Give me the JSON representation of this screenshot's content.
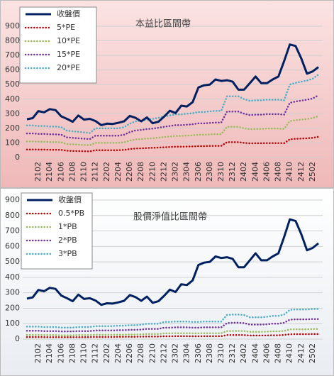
{
  "chart_data": [
    {
      "type": "line",
      "title": "本益比區間帶",
      "categories": [
        null,
        null,
        "2102",
        null,
        "2104",
        null,
        "2106",
        null,
        "2108",
        null,
        "2110",
        null,
        "2112",
        null,
        "2202",
        null,
        "2204",
        null,
        "2206",
        null,
        "2208",
        null,
        "2210",
        null,
        "2212",
        null,
        "2302",
        null,
        "2304",
        null,
        "2306",
        null,
        "2308",
        null,
        "2310",
        null,
        "2312",
        null,
        "2402",
        null,
        "2404",
        null,
        "2406",
        null,
        "2408",
        null,
        "2410",
        null,
        "2412",
        null,
        "2502",
        null
      ],
      "series": [
        {
          "name": "收盤價",
          "color": "#002060",
          "values": [
            262,
            270,
            318,
            310,
            332,
            325,
            282,
            265,
            245,
            288,
            260,
            265,
            250,
            222,
            232,
            230,
            238,
            248,
            285,
            272,
            248,
            275,
            235,
            245,
            280,
            320,
            305,
            355,
            350,
            380,
            480,
            495,
            500,
            535,
            525,
            530,
            520,
            465,
            465,
            510,
            555,
            510,
            510,
            535,
            555,
            660,
            775,
            765,
            680,
            575,
            590,
            620
          ]
        },
        {
          "name": "5*PE",
          "color": "#c00000",
          "values": [
            55,
            55,
            54,
            54,
            53,
            53,
            52,
            46,
            45,
            44,
            43,
            42,
            50,
            50,
            50,
            50,
            50,
            52,
            58,
            62,
            63,
            65,
            66,
            68,
            70,
            72,
            74,
            74,
            75,
            76,
            78,
            78,
            79,
            80,
            80,
            105,
            105,
            105,
            100,
            97,
            98,
            98,
            99,
            99,
            99,
            98,
            125,
            128,
            130,
            132,
            135,
            142
          ]
        },
        {
          "name": "10*PE",
          "color": "#9bbb59",
          "values": [
            110,
            110,
            108,
            108,
            106,
            106,
            104,
            92,
            90,
            88,
            86,
            84,
            100,
            100,
            100,
            100,
            100,
            104,
            116,
            124,
            126,
            130,
            132,
            136,
            140,
            144,
            148,
            148,
            150,
            152,
            156,
            156,
            158,
            160,
            160,
            210,
            210,
            210,
            200,
            194,
            196,
            196,
            198,
            198,
            198,
            196,
            250,
            256,
            260,
            264,
            270,
            284
          ]
        },
        {
          "name": "15*PE",
          "color": "#7030a0",
          "values": [
            165,
            165,
            162,
            162,
            159,
            159,
            156,
            138,
            135,
            132,
            129,
            126,
            150,
            150,
            150,
            150,
            150,
            156,
            174,
            186,
            189,
            195,
            198,
            204,
            210,
            216,
            222,
            222,
            225,
            228,
            234,
            234,
            237,
            240,
            240,
            315,
            315,
            315,
            300,
            291,
            294,
            294,
            297,
            297,
            297,
            294,
            375,
            384,
            390,
            396,
            405,
            426
          ]
        },
        {
          "name": "20*PE",
          "color": "#4bacc6",
          "values": [
            220,
            220,
            216,
            216,
            212,
            212,
            208,
            184,
            180,
            176,
            172,
            168,
            200,
            200,
            200,
            200,
            200,
            208,
            232,
            248,
            252,
            260,
            264,
            272,
            280,
            288,
            296,
            296,
            300,
            304,
            312,
            312,
            316,
            320,
            320,
            420,
            420,
            420,
            400,
            388,
            392,
            392,
            396,
            396,
            396,
            392,
            500,
            512,
            520,
            528,
            540,
            568
          ]
        }
      ],
      "ylim": [
        0,
        900
      ],
      "yticks": [
        0,
        100,
        200,
        300,
        400,
        500,
        600,
        700,
        800,
        900
      ],
      "grid": true,
      "legend": "top-left"
    },
    {
      "type": "line",
      "title": "股價淨值比區間帶",
      "categories": [
        null,
        null,
        "2102",
        null,
        "2104",
        null,
        "2106",
        null,
        "2108",
        null,
        "2110",
        null,
        "2112",
        null,
        "2202",
        null,
        "2204",
        null,
        "2206",
        null,
        "2208",
        null,
        "2210",
        null,
        "2212",
        null,
        "2302",
        null,
        "2304",
        null,
        "2306",
        null,
        "2308",
        null,
        "2310",
        null,
        "2312",
        null,
        "2402",
        null,
        "2404",
        null,
        "2406",
        null,
        "2408",
        null,
        "2410",
        null,
        "2412",
        null,
        "2502",
        null
      ],
      "series": [
        {
          "name": "收盤價",
          "color": "#002060",
          "values": [
            262,
            270,
            318,
            310,
            332,
            325,
            282,
            265,
            245,
            288,
            260,
            265,
            250,
            222,
            232,
            230,
            238,
            248,
            285,
            272,
            248,
            275,
            235,
            245,
            280,
            320,
            305,
            355,
            350,
            380,
            480,
            495,
            500,
            535,
            525,
            530,
            520,
            465,
            465,
            510,
            555,
            510,
            510,
            535,
            555,
            660,
            775,
            765,
            680,
            575,
            590,
            620
          ]
        },
        {
          "name": "0.5*PB",
          "color": "#c00000",
          "values": [
            13.5,
            13.5,
            13.5,
            13,
            13,
            13,
            12.5,
            12.5,
            12.5,
            13,
            13,
            13,
            14,
            14,
            14,
            14,
            14.5,
            14.5,
            15,
            15,
            15.5,
            16.5,
            16.5,
            16.5,
            18.5,
            18.5,
            19,
            19,
            19,
            18.5,
            18.5,
            19,
            19,
            19,
            19,
            26,
            26.5,
            26.5,
            26,
            23.5,
            23.5,
            23.5,
            24,
            25,
            25,
            26.5,
            31.5,
            32,
            32,
            32,
            32.5,
            32.5
          ]
        },
        {
          "name": "1*PB",
          "color": "#9bbb59",
          "values": [
            27,
            27,
            27,
            26,
            26,
            26,
            25,
            25,
            25,
            26,
            26,
            26,
            28,
            28,
            28,
            28,
            29,
            29,
            30,
            30,
            31,
            33,
            33,
            33,
            37,
            37,
            38,
            38,
            38,
            37,
            37,
            38,
            38,
            38,
            38,
            52,
            53,
            53,
            52,
            47,
            47,
            47,
            48,
            50,
            50,
            53,
            63,
            64,
            64,
            64,
            65,
            65
          ]
        },
        {
          "name": "2*PB",
          "color": "#7030a0",
          "values": [
            54,
            54,
            54,
            52,
            52,
            52,
            50,
            50,
            50,
            52,
            52,
            52,
            56,
            56,
            56,
            56,
            58,
            58,
            60,
            60,
            62,
            66,
            66,
            66,
            74,
            74,
            76,
            76,
            76,
            74,
            74,
            76,
            76,
            76,
            76,
            104,
            106,
            106,
            104,
            94,
            94,
            94,
            96,
            100,
            100,
            106,
            126,
            128,
            128,
            128,
            130,
            130
          ]
        },
        {
          "name": "3*PB",
          "color": "#4bacc6",
          "values": [
            81,
            81,
            81,
            78,
            78,
            78,
            75,
            75,
            75,
            78,
            78,
            78,
            84,
            84,
            84,
            84,
            87,
            87,
            90,
            90,
            93,
            99,
            99,
            99,
            111,
            111,
            114,
            114,
            114,
            111,
            111,
            114,
            114,
            114,
            114,
            156,
            159,
            159,
            156,
            141,
            141,
            141,
            144,
            150,
            150,
            159,
            189,
            192,
            192,
            192,
            195,
            195
          ]
        }
      ],
      "ylim": [
        0,
        900
      ],
      "yticks": [
        0,
        100,
        200,
        300,
        400,
        500,
        600,
        700,
        800,
        900
      ],
      "grid": true,
      "legend": "top-left"
    }
  ]
}
